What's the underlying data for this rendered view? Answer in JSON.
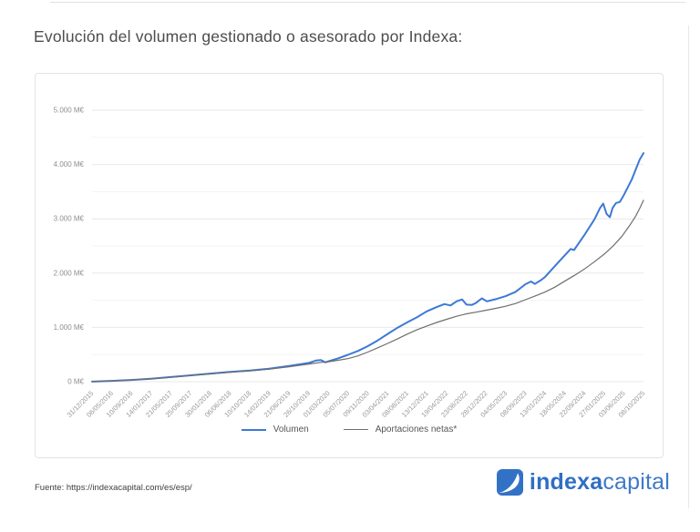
{
  "page": {
    "title": "Evolución del volumen gestionado o asesorado por Indexa:",
    "source_note": "Fuente: https://indexacapital.com/es/esp/"
  },
  "logo": {
    "brand_bold": "indexa",
    "brand_light": "capital",
    "color": "#2f6fc4",
    "icon": "indexa-swoosh-icon"
  },
  "chart_data": {
    "type": "line",
    "title": "",
    "xlabel": "",
    "ylabel": "",
    "ylim": [
      0,
      5000
    ],
    "y_major_step": 1000,
    "y_minor_step": 500,
    "grid": "horizontal",
    "y_tick_labels": [
      "0 M€",
      "1.000 M€",
      "2.000 M€",
      "3.000 M€",
      "4.000 M€",
      "5.000 M€"
    ],
    "x_tick_labels": [
      "31/12/2015",
      "06/05/2016",
      "10/09/2016",
      "14/01/2017",
      "21/05/2017",
      "25/09/2017",
      "30/01/2018",
      "06/06/2018",
      "10/10/2018",
      "14/02/2019",
      "21/06/2019",
      "26/10/2019",
      "01/03/2020",
      "05/07/2020",
      "09/11/2020",
      "03/04/2021",
      "08/08/2021",
      "13/12/2021",
      "19/04/2022",
      "23/08/2022",
      "28/12/2022",
      "04/05/2023",
      "08/09/2023",
      "13/01/2024",
      "18/05/2024",
      "22/09/2024",
      "27/01/2025",
      "03/06/2025",
      "08/10/2025"
    ],
    "legend_position": "bottom-center",
    "colors": {
      "grid_major": "#e7e7e7",
      "grid_minor": "#f3f3f3",
      "tick_text": "#999999"
    },
    "series": [
      {
        "name": "Volumen",
        "color": "#3c79d6",
        "width": 2,
        "points": [
          [
            0,
            2
          ],
          [
            0.036,
            15
          ],
          [
            0.071,
            32
          ],
          [
            0.107,
            55
          ],
          [
            0.143,
            85
          ],
          [
            0.179,
            118
          ],
          [
            0.214,
            150
          ],
          [
            0.25,
            180
          ],
          [
            0.286,
            205
          ],
          [
            0.321,
            238
          ],
          [
            0.357,
            288
          ],
          [
            0.393,
            345
          ],
          [
            0.406,
            390
          ],
          [
            0.415,
            400
          ],
          [
            0.423,
            355
          ],
          [
            0.429,
            375
          ],
          [
            0.446,
            430
          ],
          [
            0.464,
            495
          ],
          [
            0.482,
            565
          ],
          [
            0.5,
            655
          ],
          [
            0.518,
            760
          ],
          [
            0.536,
            880
          ],
          [
            0.554,
            995
          ],
          [
            0.571,
            1090
          ],
          [
            0.589,
            1185
          ],
          [
            0.607,
            1295
          ],
          [
            0.625,
            1375
          ],
          [
            0.639,
            1430
          ],
          [
            0.65,
            1405
          ],
          [
            0.661,
            1480
          ],
          [
            0.671,
            1515
          ],
          [
            0.679,
            1420
          ],
          [
            0.689,
            1415
          ],
          [
            0.696,
            1450
          ],
          [
            0.707,
            1535
          ],
          [
            0.716,
            1480
          ],
          [
            0.732,
            1520
          ],
          [
            0.75,
            1575
          ],
          [
            0.768,
            1655
          ],
          [
            0.786,
            1795
          ],
          [
            0.796,
            1845
          ],
          [
            0.803,
            1800
          ],
          [
            0.814,
            1870
          ],
          [
            0.821,
            1925
          ],
          [
            0.839,
            2125
          ],
          [
            0.857,
            2325
          ],
          [
            0.868,
            2445
          ],
          [
            0.874,
            2425
          ],
          [
            0.893,
            2705
          ],
          [
            0.911,
            2990
          ],
          [
            0.921,
            3195
          ],
          [
            0.927,
            3280
          ],
          [
            0.933,
            3090
          ],
          [
            0.939,
            3030
          ],
          [
            0.944,
            3200
          ],
          [
            0.95,
            3290
          ],
          [
            0.957,
            3310
          ],
          [
            0.964,
            3430
          ],
          [
            0.971,
            3570
          ],
          [
            0.979,
            3730
          ],
          [
            0.986,
            3910
          ],
          [
            0.993,
            4090
          ],
          [
            1,
            4210
          ]
        ]
      },
      {
        "name": "Aportaciones netas*",
        "color": "#6e6e6e",
        "width": 1.2,
        "points": [
          [
            0,
            2
          ],
          [
            0.036,
            14
          ],
          [
            0.071,
            30
          ],
          [
            0.107,
            52
          ],
          [
            0.143,
            80
          ],
          [
            0.179,
            112
          ],
          [
            0.214,
            143
          ],
          [
            0.25,
            172
          ],
          [
            0.286,
            198
          ],
          [
            0.321,
            230
          ],
          [
            0.357,
            275
          ],
          [
            0.393,
            325
          ],
          [
            0.415,
            355
          ],
          [
            0.429,
            368
          ],
          [
            0.446,
            395
          ],
          [
            0.464,
            425
          ],
          [
            0.482,
            475
          ],
          [
            0.5,
            545
          ],
          [
            0.518,
            625
          ],
          [
            0.536,
            705
          ],
          [
            0.554,
            790
          ],
          [
            0.571,
            875
          ],
          [
            0.589,
            955
          ],
          [
            0.607,
            1025
          ],
          [
            0.625,
            1090
          ],
          [
            0.643,
            1150
          ],
          [
            0.661,
            1205
          ],
          [
            0.679,
            1250
          ],
          [
            0.696,
            1280
          ],
          [
            0.714,
            1315
          ],
          [
            0.732,
            1350
          ],
          [
            0.75,
            1390
          ],
          [
            0.768,
            1440
          ],
          [
            0.786,
            1510
          ],
          [
            0.804,
            1580
          ],
          [
            0.821,
            1650
          ],
          [
            0.839,
            1740
          ],
          [
            0.857,
            1850
          ],
          [
            0.875,
            1960
          ],
          [
            0.893,
            2075
          ],
          [
            0.911,
            2210
          ],
          [
            0.929,
            2350
          ],
          [
            0.946,
            2510
          ],
          [
            0.961,
            2680
          ],
          [
            0.975,
            2880
          ],
          [
            0.986,
            3050
          ],
          [
            0.993,
            3190
          ],
          [
            1,
            3340
          ]
        ]
      }
    ]
  }
}
